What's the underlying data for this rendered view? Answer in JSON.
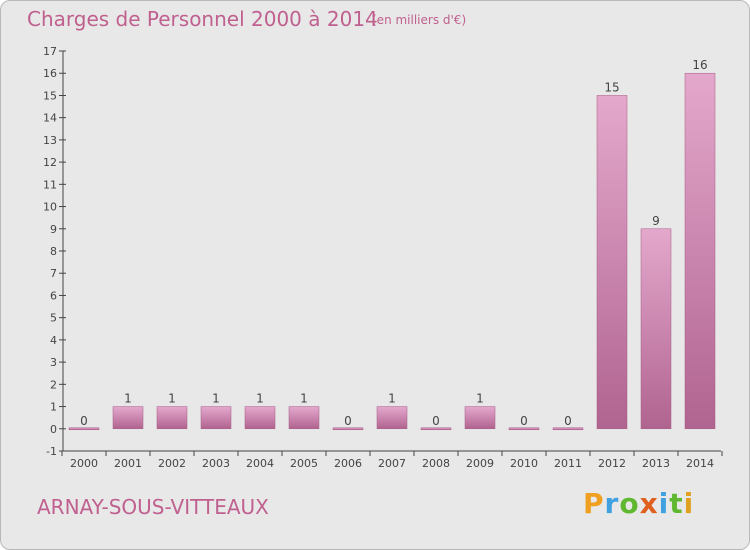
{
  "header": {
    "title": "Charges de Personnel 2000 à 2014",
    "subtitle": "(en milliers d'€)"
  },
  "footer": {
    "commune": "ARNAY-SOUS-VITTEAUX",
    "brand_letters": [
      {
        "ch": "P",
        "color": "#f0a020"
      },
      {
        "ch": "r",
        "color": "#40a0e0"
      },
      {
        "ch": "o",
        "color": "#60b830"
      },
      {
        "ch": "x",
        "color": "#e06020"
      },
      {
        "ch": "i",
        "color": "#40a0e0"
      },
      {
        "ch": "t",
        "color": "#60b830"
      },
      {
        "ch": "i",
        "color": "#e0a020"
      }
    ]
  },
  "colors": {
    "bar_light": "#e4a8cc",
    "bar_dark": "#b06490",
    "text": "#c0608f",
    "axis": "#444444"
  },
  "chart_data": {
    "type": "bar",
    "categories": [
      "2000",
      "2001",
      "2002",
      "2003",
      "2004",
      "2005",
      "2006",
      "2007",
      "2008",
      "2009",
      "2010",
      "2011",
      "2012",
      "2013",
      "2014"
    ],
    "values": [
      0,
      1,
      1,
      1,
      1,
      1,
      0,
      1,
      0,
      1,
      0,
      0,
      15,
      9,
      16
    ],
    "data_labels": [
      "0",
      "1",
      "1",
      "1",
      "1",
      "1",
      "0",
      "1",
      "0",
      "1",
      "0",
      "0",
      "15",
      "9",
      "16"
    ],
    "y_ticks": [
      -1,
      0,
      1,
      2,
      3,
      4,
      5,
      6,
      7,
      8,
      9,
      10,
      11,
      12,
      13,
      14,
      15,
      16,
      17
    ],
    "ylim": [
      -1,
      17
    ],
    "grid": false
  }
}
